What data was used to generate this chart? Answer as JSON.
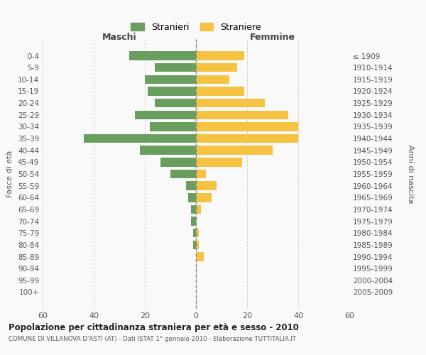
{
  "age_groups": [
    "0-4",
    "5-9",
    "10-14",
    "15-19",
    "20-24",
    "25-29",
    "30-34",
    "35-39",
    "40-44",
    "45-49",
    "50-54",
    "55-59",
    "60-64",
    "65-69",
    "70-74",
    "75-79",
    "80-84",
    "85-89",
    "90-94",
    "95-99",
    "100+"
  ],
  "birth_years": [
    "2005-2009",
    "2000-2004",
    "1995-1999",
    "1990-1994",
    "1985-1989",
    "1980-1984",
    "1975-1979",
    "1970-1974",
    "1965-1969",
    "1960-1964",
    "1955-1959",
    "1950-1954",
    "1945-1949",
    "1940-1944",
    "1935-1939",
    "1930-1934",
    "1925-1929",
    "1920-1924",
    "1915-1919",
    "1910-1914",
    "≤ 1909"
  ],
  "males": [
    26,
    16,
    20,
    19,
    16,
    24,
    18,
    44,
    22,
    14,
    10,
    4,
    3,
    2,
    2,
    1,
    1,
    0,
    0,
    0,
    0
  ],
  "females": [
    19,
    16,
    13,
    19,
    27,
    36,
    40,
    40,
    30,
    18,
    4,
    8,
    6,
    2,
    0,
    1,
    1,
    3,
    0,
    0,
    0
  ],
  "male_color": "#6a9e5e",
  "female_color": "#f5c242",
  "male_label": "Stranieri",
  "female_label": "Straniere",
  "title": "Popolazione per cittadinanza straniera per età e sesso - 2010",
  "subtitle": "COMUNE DI VILLANOVA D'ASTI (AT) - Dati ISTAT 1° gennaio 2010 - Elaborazione TUTTITALIA.IT",
  "xlabel_left": "Maschi",
  "xlabel_right": "Femmine",
  "ylabel_left": "Fasce di età",
  "ylabel_right": "Anni di nascita",
  "xlim": 60,
  "background_color": "#f9f9f9",
  "grid_color": "#cccccc"
}
